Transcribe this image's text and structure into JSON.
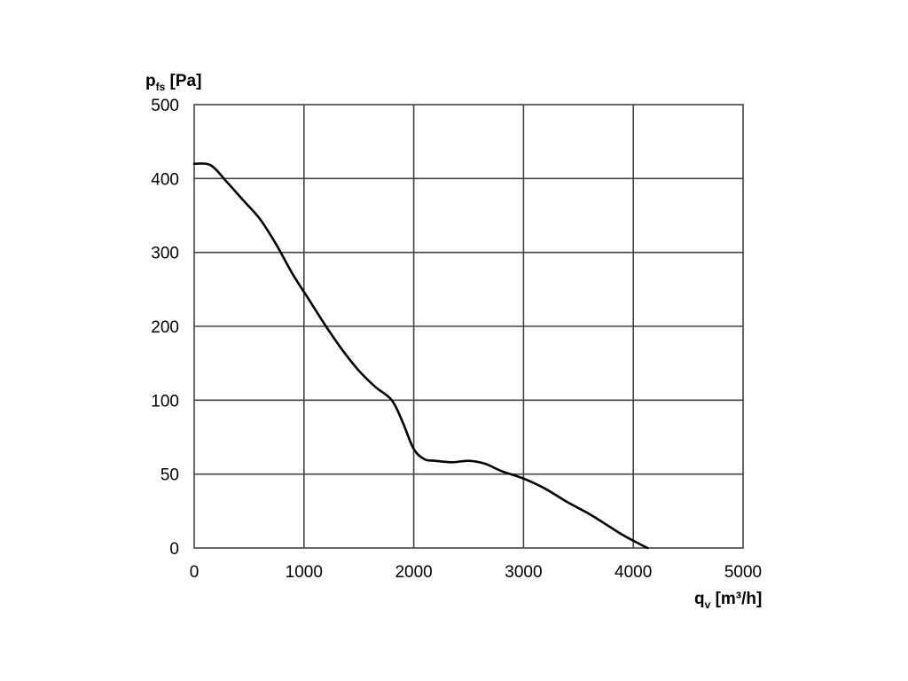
{
  "chart_data": {
    "type": "line",
    "xlabel": {
      "main": "q",
      "sub": "v",
      "unit": " [m³/h]"
    },
    "ylabel": {
      "main": "p",
      "sub": "fs",
      "unit": " [Pa]"
    },
    "xlim": [
      0,
      5000
    ],
    "x_ticks": [
      "0",
      "1000",
      "2000",
      "3000",
      "4000",
      "5000"
    ],
    "y_ticks": [
      "0",
      "50",
      "100",
      "200",
      "300",
      "400",
      "500"
    ],
    "y_scale": "non-uniform (0, 50, 100, 200, 300, 400, 500 equally spaced)",
    "grid": true,
    "legend": "none",
    "series": [
      {
        "x": [
          0,
          150,
          300,
          450,
          600,
          750,
          900,
          1050,
          1200,
          1350,
          1500,
          1650,
          1800,
          1900,
          2000,
          2100,
          2200,
          2350,
          2500,
          2650,
          2800,
          3000,
          3200,
          3400,
          3600,
          3750,
          3900,
          4050,
          4130
        ],
        "y": [
          420,
          418,
          395,
          370,
          345,
          310,
          270,
          235,
          200,
          168,
          140,
          118,
          100,
          85,
          67,
          60,
          59,
          58,
          59,
          57,
          52,
          47,
          40,
          31,
          23,
          16,
          9,
          3,
          0
        ],
        "color": "#000000"
      }
    ]
  }
}
